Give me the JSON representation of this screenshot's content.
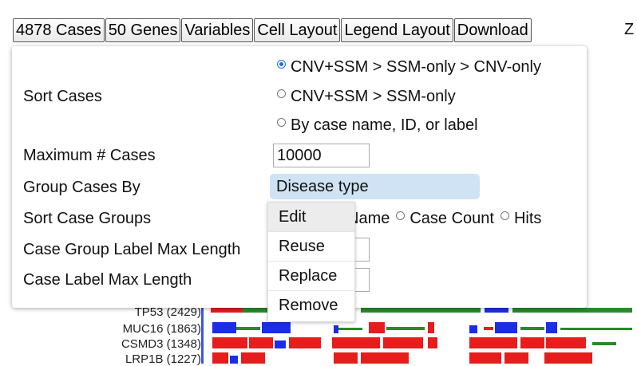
{
  "toolbar": {
    "cases": "4878 Cases",
    "genes": "50 Genes",
    "variables": "Variables",
    "cell_layout": "Cell Layout",
    "legend_layout": "Legend Layout",
    "download": "Download"
  },
  "cut_off_text": "Z",
  "settings": {
    "sort_cases_label": "Sort Cases",
    "sort_options": [
      "CNV+SSM > SSM-only > CNV-only",
      "CNV+SSM > SSM-only",
      "By case name, ID, or label"
    ],
    "sort_selected_index": 0,
    "max_cases_label": "Maximum # Cases",
    "max_cases_value": "10000",
    "group_by_label": "Group Cases By",
    "group_by_value": "Disease type",
    "sort_groups_label": "Sort Case Groups",
    "sort_groups_options": [
      "Name",
      "Case Count",
      "Hits"
    ],
    "group_label_max_label": "Case Group Label Max Length",
    "case_label_max_label": "Case Label Max Length"
  },
  "context_menu": {
    "items": [
      "Edit",
      "Reuse",
      "Replace",
      "Remove"
    ],
    "highlighted_index": 0
  },
  "genes": [
    {
      "label": "TP53 (2429)"
    },
    {
      "label": "MUC16 (1863)"
    },
    {
      "label": "CSMD3 (1348)"
    },
    {
      "label": "LRP1B (1227)"
    }
  ],
  "colors": {
    "cnv_gain": "#e51d1d",
    "cnv_loss": "#1c2de6",
    "missense": "#2a8a2a",
    "selected_pill": "#cfe3f4",
    "radio_accent": "#1a73e8"
  }
}
